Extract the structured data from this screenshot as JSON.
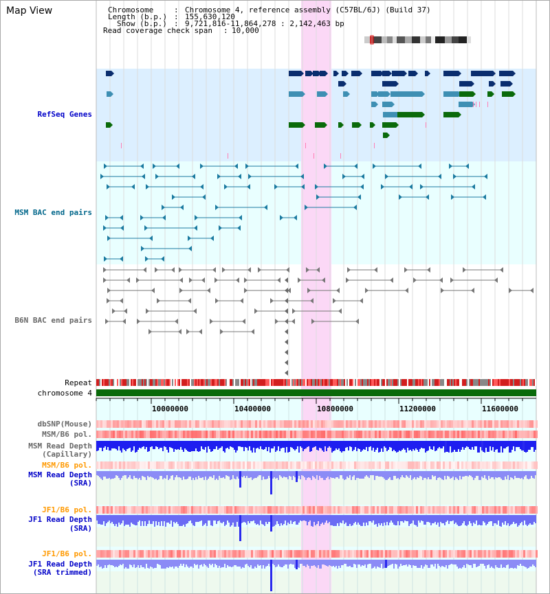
{
  "app": {
    "title": "Map View"
  },
  "header": {
    "chromosome_label": "Chromosome",
    "chromosome_value": "Chromosome 4, reference assembly (C57BL/6J) (Build 37)",
    "length_label": "Length (b.p.)",
    "length_value": "155,630,120",
    "show_label": "Show (b.p.)",
    "show_value": "9,721,816-11,864,278 : 2,142,463 bp",
    "coverage_label": "Read coverage check span",
    "coverage_value": "10,000"
  },
  "tracks": {
    "refseq": "RefSeq Genes",
    "msm_bac": "MSM BAC end pairs",
    "b6n_bac": "B6N BAC end pairs",
    "repeat": "Repeat",
    "chromosome": "chromosome 4",
    "dbsnp": "dbSNP(Mouse)",
    "msm_b6_pol": "MSM/B6 pol.",
    "msm_depth_cap_1": "MSM Read Depth",
    "msm_depth_cap_2": "(Capillary)",
    "msm_b6_pol_sra": "MSM/B6 pol.",
    "msm_depth_sra_1": "MSM Read Depth",
    "msm_depth_sra_2": "(SRA)",
    "jf1_b6_pol_a": "JF1/B6 pol.",
    "jf1_depth_sra_1": "JF1 Read Depth",
    "jf1_depth_sra_2": "(SRA)",
    "jf1_b6_pol_b": "JF1/B6 pol.",
    "jf1_depth_trim_1": "JF1 Read Depth",
    "jf1_depth_trim_2": "(SRA trimmed)"
  },
  "axis": {
    "ticks": [
      "10000000",
      "10400000",
      "10800000",
      "11200000",
      "11600000"
    ]
  },
  "colors": {
    "refseq_bg": "#dcefff",
    "bac_bg": "#e9ffff",
    "highlight": "#fbd8f6",
    "label_blue": "#0000c8",
    "label_orange": "#ff9900",
    "label_teal": "#00668a",
    "gene_navy": "#0a2d6e",
    "gene_teal": "#3e8fb3",
    "gene_green": "#0a6a0a",
    "chrom_green": "#0a6a0a",
    "depth_blue": "#2a2aee",
    "depth_light": "#8b8bf6"
  }
}
